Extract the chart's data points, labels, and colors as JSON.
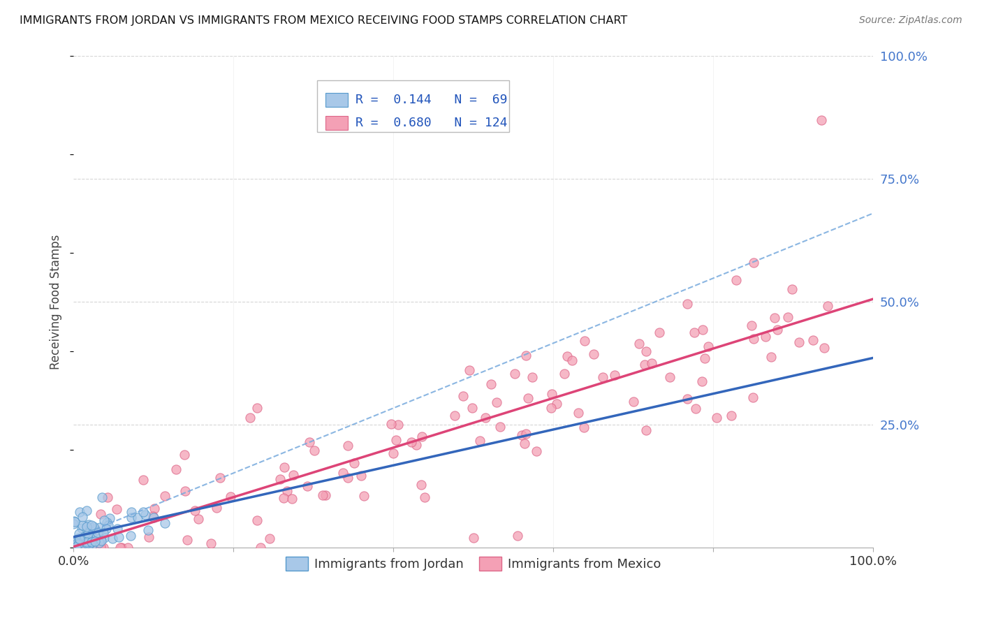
{
  "title": "IMMIGRANTS FROM JORDAN VS IMMIGRANTS FROM MEXICO RECEIVING FOOD STAMPS CORRELATION CHART",
  "source": "Source: ZipAtlas.com",
  "ylabel": "Receiving Food Stamps",
  "legend_jordan": "Immigrants from Jordan",
  "legend_mexico": "Immigrants from Mexico",
  "r_jordan": "0.144",
  "n_jordan": "69",
  "r_mexico": "0.680",
  "n_mexico": "124",
  "jordan_fill_color": "#a8c8e8",
  "jordan_edge_color": "#5599cc",
  "mexico_fill_color": "#f4a0b5",
  "mexico_edge_color": "#dd6688",
  "jordan_line_color": "#3366bb",
  "mexico_line_color": "#dd4477",
  "dash_line_color": "#77aadd",
  "background_color": "#ffffff",
  "grid_color": "#cccccc",
  "title_color": "#111111",
  "stats_color": "#2255bb",
  "right_tick_color": "#4477cc",
  "legend_box_edge": "#bbbbbb",
  "legend_box_face": "#ffffff"
}
